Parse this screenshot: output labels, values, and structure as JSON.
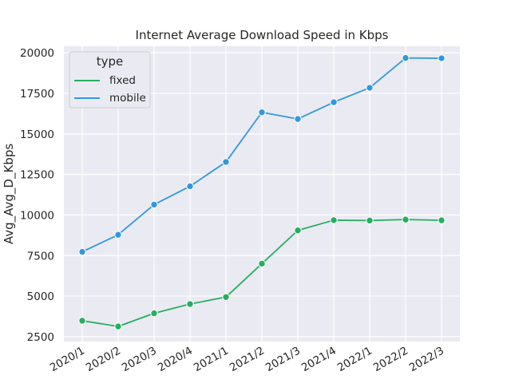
{
  "chart_data": {
    "type": "line",
    "title": "Internet Average Download Speed in Kbps",
    "xlabel": "",
    "ylabel": "Avg_Avg_D_Kbps",
    "categories": [
      "2020/1",
      "2020/2",
      "2020/3",
      "2020/4",
      "2021/1",
      "2021/2",
      "2021/3",
      "2021/4",
      "2022/1",
      "2022/2",
      "2022/3"
    ],
    "ylim": [
      2200,
      20400
    ],
    "yticks": [
      2500,
      5000,
      7500,
      10000,
      12500,
      15000,
      17500,
      20000
    ],
    "grid": true,
    "legend": {
      "title": "type",
      "placement": "top-left"
    },
    "series": [
      {
        "name": "fixed",
        "color": "#27ae60",
        "values": [
          3480,
          3130,
          3940,
          4510,
          4940,
          7000,
          9050,
          9680,
          9660,
          9720,
          9670
        ]
      },
      {
        "name": "mobile",
        "color": "#3498db",
        "values": [
          7730,
          8780,
          10640,
          11770,
          13270,
          16330,
          15920,
          16950,
          17840,
          19680,
          19660
        ]
      }
    ]
  }
}
